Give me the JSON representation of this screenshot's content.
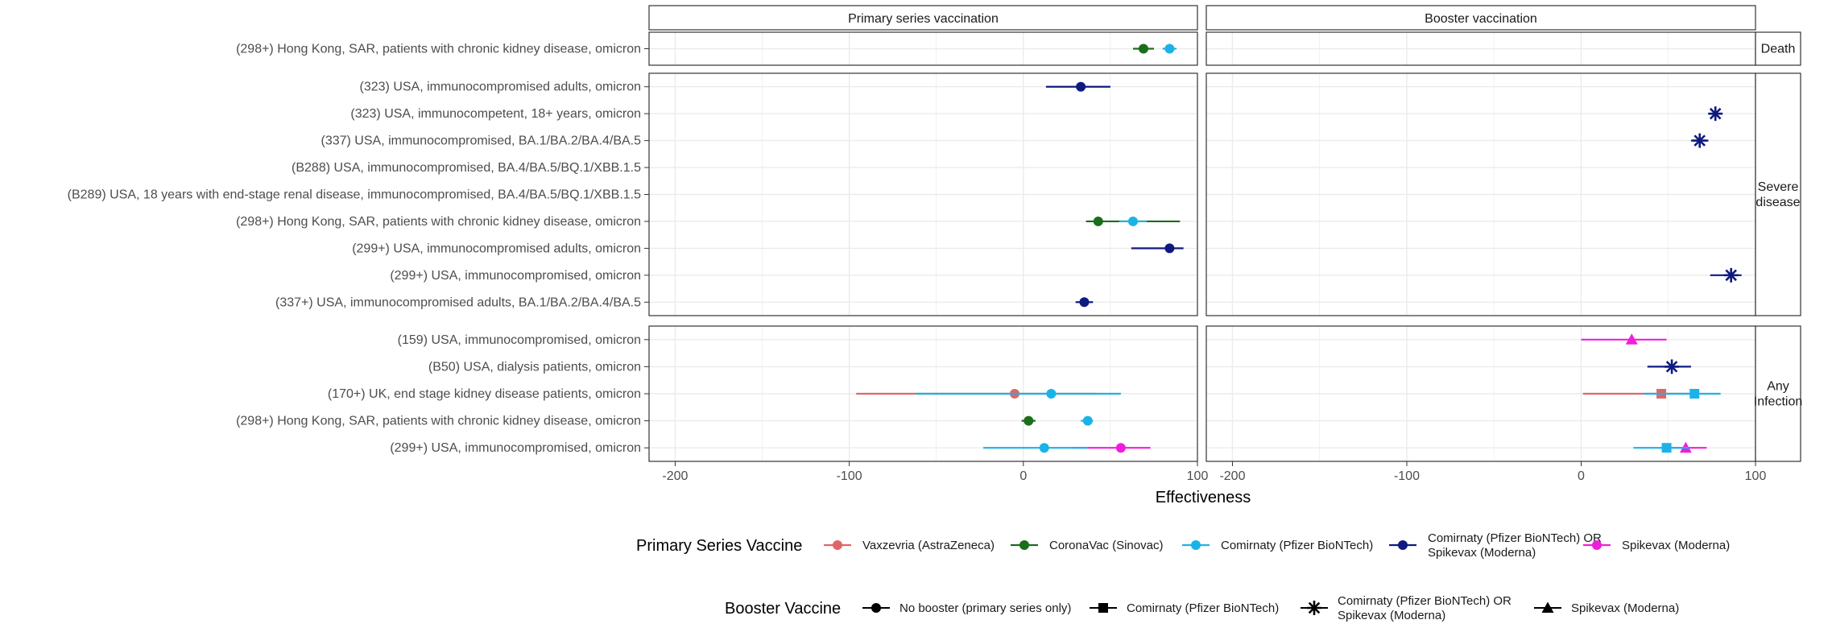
{
  "chart_data": {
    "type": "forest",
    "xlabel": "Effectiveness",
    "x_ticks": [
      -200,
      -100,
      0,
      100
    ],
    "xlim": [
      -215,
      100
    ],
    "facet_columns": [
      "Primary series vaccination",
      "Booster vaccination"
    ],
    "facet_rows": [
      {
        "key": "death",
        "label": [
          "Death"
        ],
        "studies": [
          "(298+) Hong Kong, SAR, patients with chronic kidney disease, omicron"
        ]
      },
      {
        "key": "severe",
        "label": [
          "Severe",
          "disease"
        ],
        "studies": [
          "(323) USA, immunocompromised adults, omicron",
          "(323) USA, immunocompetent, 18+ years, omicron",
          "(337) USA, immunocompromised, BA.1/BA.2/BA.4/BA.5",
          "(B288) USA, immunocompromised, BA.4/BA.5/BQ.1/XBB.1.5",
          "(B289) USA, 18 years with end-stage renal disease, immunocompromised, BA.4/BA.5/BQ.1/XBB.1.5",
          "(298+) Hong Kong, SAR, patients with chronic kidney disease, omicron",
          "(299+) USA, immunocompromised adults, omicron",
          "(299+) USA, immunocompromised, omicron",
          "(337+) USA, immunocompromised adults, BA.1/BA.2/BA.4/BA.5"
        ]
      },
      {
        "key": "infection",
        "label": [
          "Any",
          "Infection"
        ],
        "studies": [
          "(159) USA, immunocompromised, omicron",
          "(B50) USA, dialysis patients, omicron",
          "(170+) UK, end stage kidney disease patients, omicron",
          "(298+) Hong Kong, SAR, patients with chronic kidney disease, omicron",
          "(299+) USA, immunocompromised, omicron"
        ]
      }
    ],
    "points": [
      {
        "facet_row": "death",
        "facet_col": 0,
        "study": 0,
        "primary": "CoronaVac (Sinovac)",
        "booster": "No booster (primary series only)",
        "value": 69,
        "ci": [
          63,
          75
        ]
      },
      {
        "facet_row": "death",
        "facet_col": 0,
        "study": 0,
        "primary": "Comirnaty (Pfizer BioNTech)",
        "booster": "No booster (primary series only)",
        "value": 84,
        "ci": [
          80,
          88
        ]
      },
      {
        "facet_row": "severe",
        "facet_col": 0,
        "study": 0,
        "primary": "Comirnaty (Pfizer BioNTech) OR Spikevax (Moderna)",
        "booster": "No booster (primary series only)",
        "value": 33,
        "ci": [
          13,
          50
        ]
      },
      {
        "facet_row": "severe",
        "facet_col": 0,
        "study": 5,
        "primary": "CoronaVac (Sinovac)",
        "booster": "No booster (primary series only)",
        "value": 43,
        "ci": [
          36,
          90
        ]
      },
      {
        "facet_row": "severe",
        "facet_col": 0,
        "study": 5,
        "primary": "Comirnaty (Pfizer BioNTech)",
        "booster": "No booster (primary series only)",
        "value": 63,
        "ci": [
          55,
          71
        ]
      },
      {
        "facet_row": "severe",
        "facet_col": 0,
        "study": 6,
        "primary": "Comirnaty (Pfizer BioNTech) OR Spikevax (Moderna)",
        "booster": "No booster (primary series only)",
        "value": 84,
        "ci": [
          62,
          92
        ]
      },
      {
        "facet_row": "severe",
        "facet_col": 0,
        "study": 8,
        "primary": "Comirnaty (Pfizer BioNTech) OR Spikevax (Moderna)",
        "booster": "No booster (primary series only)",
        "value": 35,
        "ci": [
          30,
          40
        ]
      },
      {
        "facet_row": "severe",
        "facet_col": 1,
        "study": 1,
        "primary": "Comirnaty (Pfizer BioNTech) OR Spikevax (Moderna)",
        "booster": "Comirnaty (Pfizer BioNTech) OR Spikevax (Moderna)",
        "value": 77,
        "ci": [
          73,
          81
        ]
      },
      {
        "facet_row": "severe",
        "facet_col": 1,
        "study": 2,
        "primary": "Comirnaty (Pfizer BioNTech) OR Spikevax (Moderna)",
        "booster": "Comirnaty (Pfizer BioNTech) OR Spikevax (Moderna)",
        "value": 68,
        "ci": [
          63,
          73
        ]
      },
      {
        "facet_row": "severe",
        "facet_col": 1,
        "study": 7,
        "primary": "Comirnaty (Pfizer BioNTech) OR Spikevax (Moderna)",
        "booster": "Comirnaty (Pfizer BioNTech) OR Spikevax (Moderna)",
        "value": 86,
        "ci": [
          74,
          92
        ]
      },
      {
        "facet_row": "infection",
        "facet_col": 0,
        "study": 2,
        "primary": "Vaxzevria (AstraZeneca)",
        "booster": "No booster (primary series only)",
        "value": -5,
        "ci": [
          -96,
          42
        ]
      },
      {
        "facet_row": "infection",
        "facet_col": 0,
        "study": 2,
        "primary": "Comirnaty (Pfizer BioNTech)",
        "booster": "No booster (primary series only)",
        "value": 16,
        "ci": [
          -62,
          56
        ]
      },
      {
        "facet_row": "infection",
        "facet_col": 0,
        "study": 3,
        "primary": "CoronaVac (Sinovac)",
        "booster": "No booster (primary series only)",
        "value": 3,
        "ci": [
          -1,
          7
        ]
      },
      {
        "facet_row": "infection",
        "facet_col": 0,
        "study": 3,
        "primary": "Comirnaty (Pfizer BioNTech)",
        "booster": "No booster (primary series only)",
        "value": 37,
        "ci": [
          33,
          40
        ]
      },
      {
        "facet_row": "infection",
        "facet_col": 0,
        "study": 4,
        "primary": "Spikevax (Moderna)",
        "booster": "No booster (primary series only)",
        "value": 56,
        "ci": [
          28,
          73
        ]
      },
      {
        "facet_row": "infection",
        "facet_col": 0,
        "study": 4,
        "primary": "Comirnaty (Pfizer BioNTech)",
        "booster": "No booster (primary series only)",
        "value": 12,
        "ci": [
          -23,
          37
        ]
      },
      {
        "facet_row": "infection",
        "facet_col": 1,
        "study": 0,
        "primary": "Spikevax (Moderna)",
        "booster": "Spikevax (Moderna)",
        "value": 29,
        "ci": [
          0,
          49
        ]
      },
      {
        "facet_row": "infection",
        "facet_col": 1,
        "study": 1,
        "primary": "Comirnaty (Pfizer BioNTech) OR Spikevax (Moderna)",
        "booster": "Comirnaty (Pfizer BioNTech) OR Spikevax (Moderna)",
        "value": 52,
        "ci": [
          38,
          63
        ]
      },
      {
        "facet_row": "infection",
        "facet_col": 1,
        "study": 2,
        "primary": "Vaxzevria (AstraZeneca)",
        "booster": "Comirnaty (Pfizer BioNTech)",
        "value": 46,
        "ci": [
          1,
          67
        ]
      },
      {
        "facet_row": "infection",
        "facet_col": 1,
        "study": 2,
        "primary": "Comirnaty (Pfizer BioNTech)",
        "booster": "Comirnaty (Pfizer BioNTech)",
        "value": 65,
        "ci": [
          36,
          80
        ]
      },
      {
        "facet_row": "infection",
        "facet_col": 1,
        "study": 4,
        "primary": "Spikevax (Moderna)",
        "booster": "Spikevax (Moderna)",
        "value": 60,
        "ci": [
          45,
          72
        ]
      },
      {
        "facet_row": "infection",
        "facet_col": 1,
        "study": 4,
        "primary": "Comirnaty (Pfizer BioNTech)",
        "booster": "Comirnaty (Pfizer BioNTech)",
        "value": 49,
        "ci": [
          30,
          62
        ]
      }
    ],
    "legend": {
      "primary_title": "Primary Series Vaccine",
      "primary_items": [
        {
          "name": [
            "Vaxzevria (AstraZeneca)"
          ],
          "color": "#E06666"
        },
        {
          "name": [
            "CoronaVac (Sinovac)"
          ],
          "color": "#1B6E1B"
        },
        {
          "name": [
            "Comirnaty (Pfizer BioNTech)"
          ],
          "color": "#1AB3E8"
        },
        {
          "name": [
            "Comirnaty (Pfizer BioNTech) OR",
            "Spikevax (Moderna)"
          ],
          "color": "#0F1A80"
        },
        {
          "name": [
            "Spikevax (Moderna)"
          ],
          "color": "#F01EDC"
        }
      ],
      "booster_title": "Booster Vaccine",
      "booster_items": [
        {
          "name": [
            "No booster (primary series only)"
          ],
          "shape": "circle"
        },
        {
          "name": [
            "Comirnaty (Pfizer BioNTech)"
          ],
          "shape": "square"
        },
        {
          "name": [
            "Comirnaty (Pfizer BioNTech) OR",
            "Spikevax (Moderna)"
          ],
          "shape": "asterisk"
        },
        {
          "name": [
            "Spikevax (Moderna)"
          ],
          "shape": "triangle"
        }
      ],
      "placement": "bottom"
    },
    "grid": true
  }
}
